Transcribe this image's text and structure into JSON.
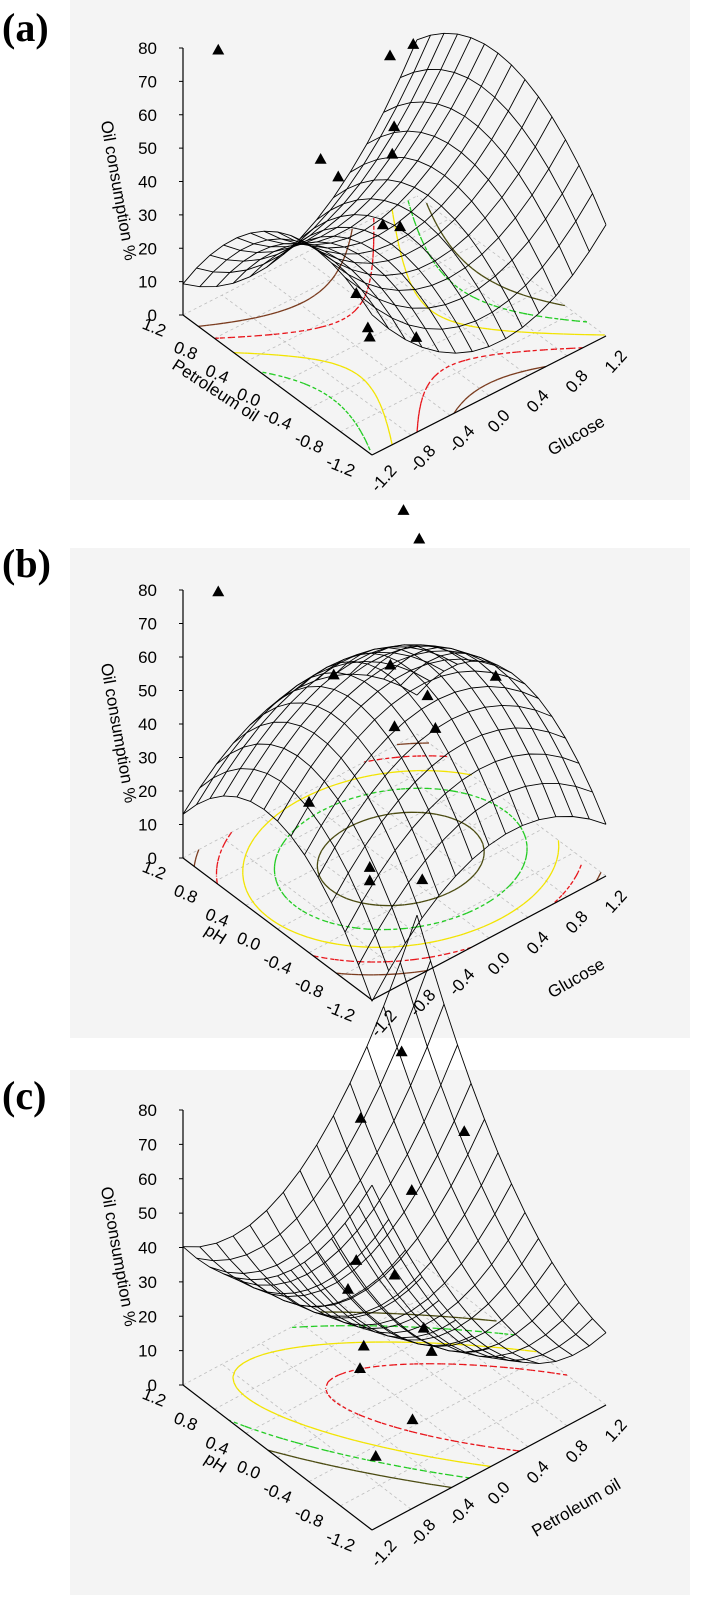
{
  "figure": {
    "colors": {
      "mesh": "#000000",
      "floor_grid": "#bdbdbd",
      "panel_bg": "#f4f4f4",
      "marker": "#000000"
    },
    "contour_colors": [
      "#7a3b1e",
      "#e8141a",
      "#f2e400",
      "#22cc22",
      "#4a4a10"
    ]
  },
  "chart_data": [
    {
      "panel": "(a)",
      "type": "surface3d",
      "zlabel": "Oil consumption %",
      "xlabel": "Glucose",
      "ylabel": "Petroleum oil",
      "z_ticks": [
        "80",
        "70",
        "60",
        "50",
        "40",
        "30",
        "20",
        "10",
        "0"
      ],
      "x_ticks": [
        "-1.2",
        "-0.8",
        "-0.4",
        "0.0",
        "0.4",
        "0.8",
        "1.2"
      ],
      "y_ticks": [
        "1.2",
        "0.8",
        "0.4",
        "0.0",
        "-0.4",
        "-0.8",
        "-1.2"
      ],
      "zlim": [
        0,
        80
      ],
      "xlim": [
        -1.2,
        1.2
      ],
      "ylim": [
        -1.2,
        1.2
      ],
      "surface_shape": "saddle",
      "points": [
        {
          "x": -1.0,
          "y": 1.0,
          "z": 80
        },
        {
          "x": -1.0,
          "y": -0.3,
          "z": 70
        },
        {
          "x": -0.9,
          "y": -0.4,
          "z": 65
        },
        {
          "x": 0.6,
          "y": 0.8,
          "z": 58
        },
        {
          "x": 1.0,
          "y": 1.0,
          "z": 52
        },
        {
          "x": -1.2,
          "y": -1.0,
          "z": 45
        },
        {
          "x": 0.4,
          "y": 0.5,
          "z": 45
        },
        {
          "x": 0.3,
          "y": 0.4,
          "z": 40
        },
        {
          "x": -0.2,
          "y": -0.1,
          "z": 35
        },
        {
          "x": -1.0,
          "y": -0.9,
          "z": 30
        },
        {
          "x": -0.9,
          "y": -0.8,
          "z": 24
        },
        {
          "x": 0.3,
          "y": 0.3,
          "z": 20
        },
        {
          "x": -0.1,
          "y": -0.4,
          "z": 5
        }
      ]
    },
    {
      "panel": "(b)",
      "type": "surface3d",
      "zlabel": "Oil consumption %",
      "xlabel": "Glucose",
      "ylabel": "pH",
      "z_ticks": [
        "80",
        "70",
        "60",
        "50",
        "40",
        "30",
        "20",
        "10",
        "0"
      ],
      "x_ticks": [
        "-1.2",
        "-0.8",
        "-0.4",
        "0.0",
        "0.4",
        "0.8",
        "1.2"
      ],
      "y_ticks": [
        "1.2",
        "0.8",
        "0.4",
        "0.0",
        "-0.4",
        "-0.8",
        "-1.2"
      ],
      "zlim": [
        0,
        80
      ],
      "xlim": [
        -1.2,
        1.2
      ],
      "ylim": [
        -1.2,
        1.2
      ],
      "surface_shape": "dome",
      "points": [
        {
          "x": -1.0,
          "y": 1.0,
          "z": 80
        },
        {
          "x": 0.9,
          "y": 1.0,
          "z": 75
        },
        {
          "x": 0.9,
          "y": 0.8,
          "z": 70
        },
        {
          "x": -0.3,
          "y": 0.4,
          "z": 55
        },
        {
          "x": 0.2,
          "y": 0.3,
          "z": 52
        },
        {
          "x": -1.2,
          "y": -0.4,
          "z": 45
        },
        {
          "x": 0.0,
          "y": 0.0,
          "z": 42
        },
        {
          "x": 0.5,
          "y": 0.2,
          "z": 40
        },
        {
          "x": 0.5,
          "y": 0.1,
          "z": 32
        },
        {
          "x": 1.2,
          "y": 0.2,
          "z": 35
        },
        {
          "x": -0.9,
          "y": -0.8,
          "z": 28
        },
        {
          "x": -0.9,
          "y": -0.8,
          "z": 24
        },
        {
          "x": -0.2,
          "y": -0.6,
          "z": 10
        }
      ]
    },
    {
      "panel": "(c)",
      "type": "surface3d",
      "zlabel": "Oil consumption %",
      "xlabel": "Petroleum oil",
      "ylabel": "pH",
      "z_ticks": [
        "80",
        "70",
        "60",
        "50",
        "40",
        "30",
        "20",
        "10",
        "0"
      ],
      "x_ticks": [
        "-1.2",
        "-0.8",
        "-0.4",
        "0.0",
        "0.4",
        "0.8",
        "1.2"
      ],
      "y_ticks": [
        "1.2",
        "0.8",
        "0.4",
        "0.0",
        "-0.4",
        "-0.8",
        "-1.2"
      ],
      "zlim": [
        0,
        80
      ],
      "xlim": [
        -1.2,
        1.2
      ],
      "ylim": [
        -1.2,
        1.2
      ],
      "surface_shape": "valley",
      "points": [
        {
          "x": -1.2,
          "y": -1.0,
          "z": 75
        },
        {
          "x": 0.8,
          "y": 0.9,
          "z": 72
        },
        {
          "x": 0.3,
          "y": 0.8,
          "z": 62
        },
        {
          "x": -0.8,
          "y": -0.4,
          "z": 50
        },
        {
          "x": 0.5,
          "y": 0.4,
          "z": 45
        },
        {
          "x": 1.2,
          "y": 0.6,
          "z": 48
        },
        {
          "x": -1.0,
          "y": -0.8,
          "z": 37
        },
        {
          "x": -0.8,
          "y": -0.6,
          "z": 37
        },
        {
          "x": 0.0,
          "y": 0.0,
          "z": 35
        },
        {
          "x": -1.0,
          "y": -1.0,
          "z": 15
        },
        {
          "x": 0.3,
          "y": 0.0,
          "z": 15
        },
        {
          "x": 0.3,
          "y": -0.1,
          "z": 10
        },
        {
          "x": -0.3,
          "y": -0.6,
          "z": 8
        }
      ]
    }
  ]
}
